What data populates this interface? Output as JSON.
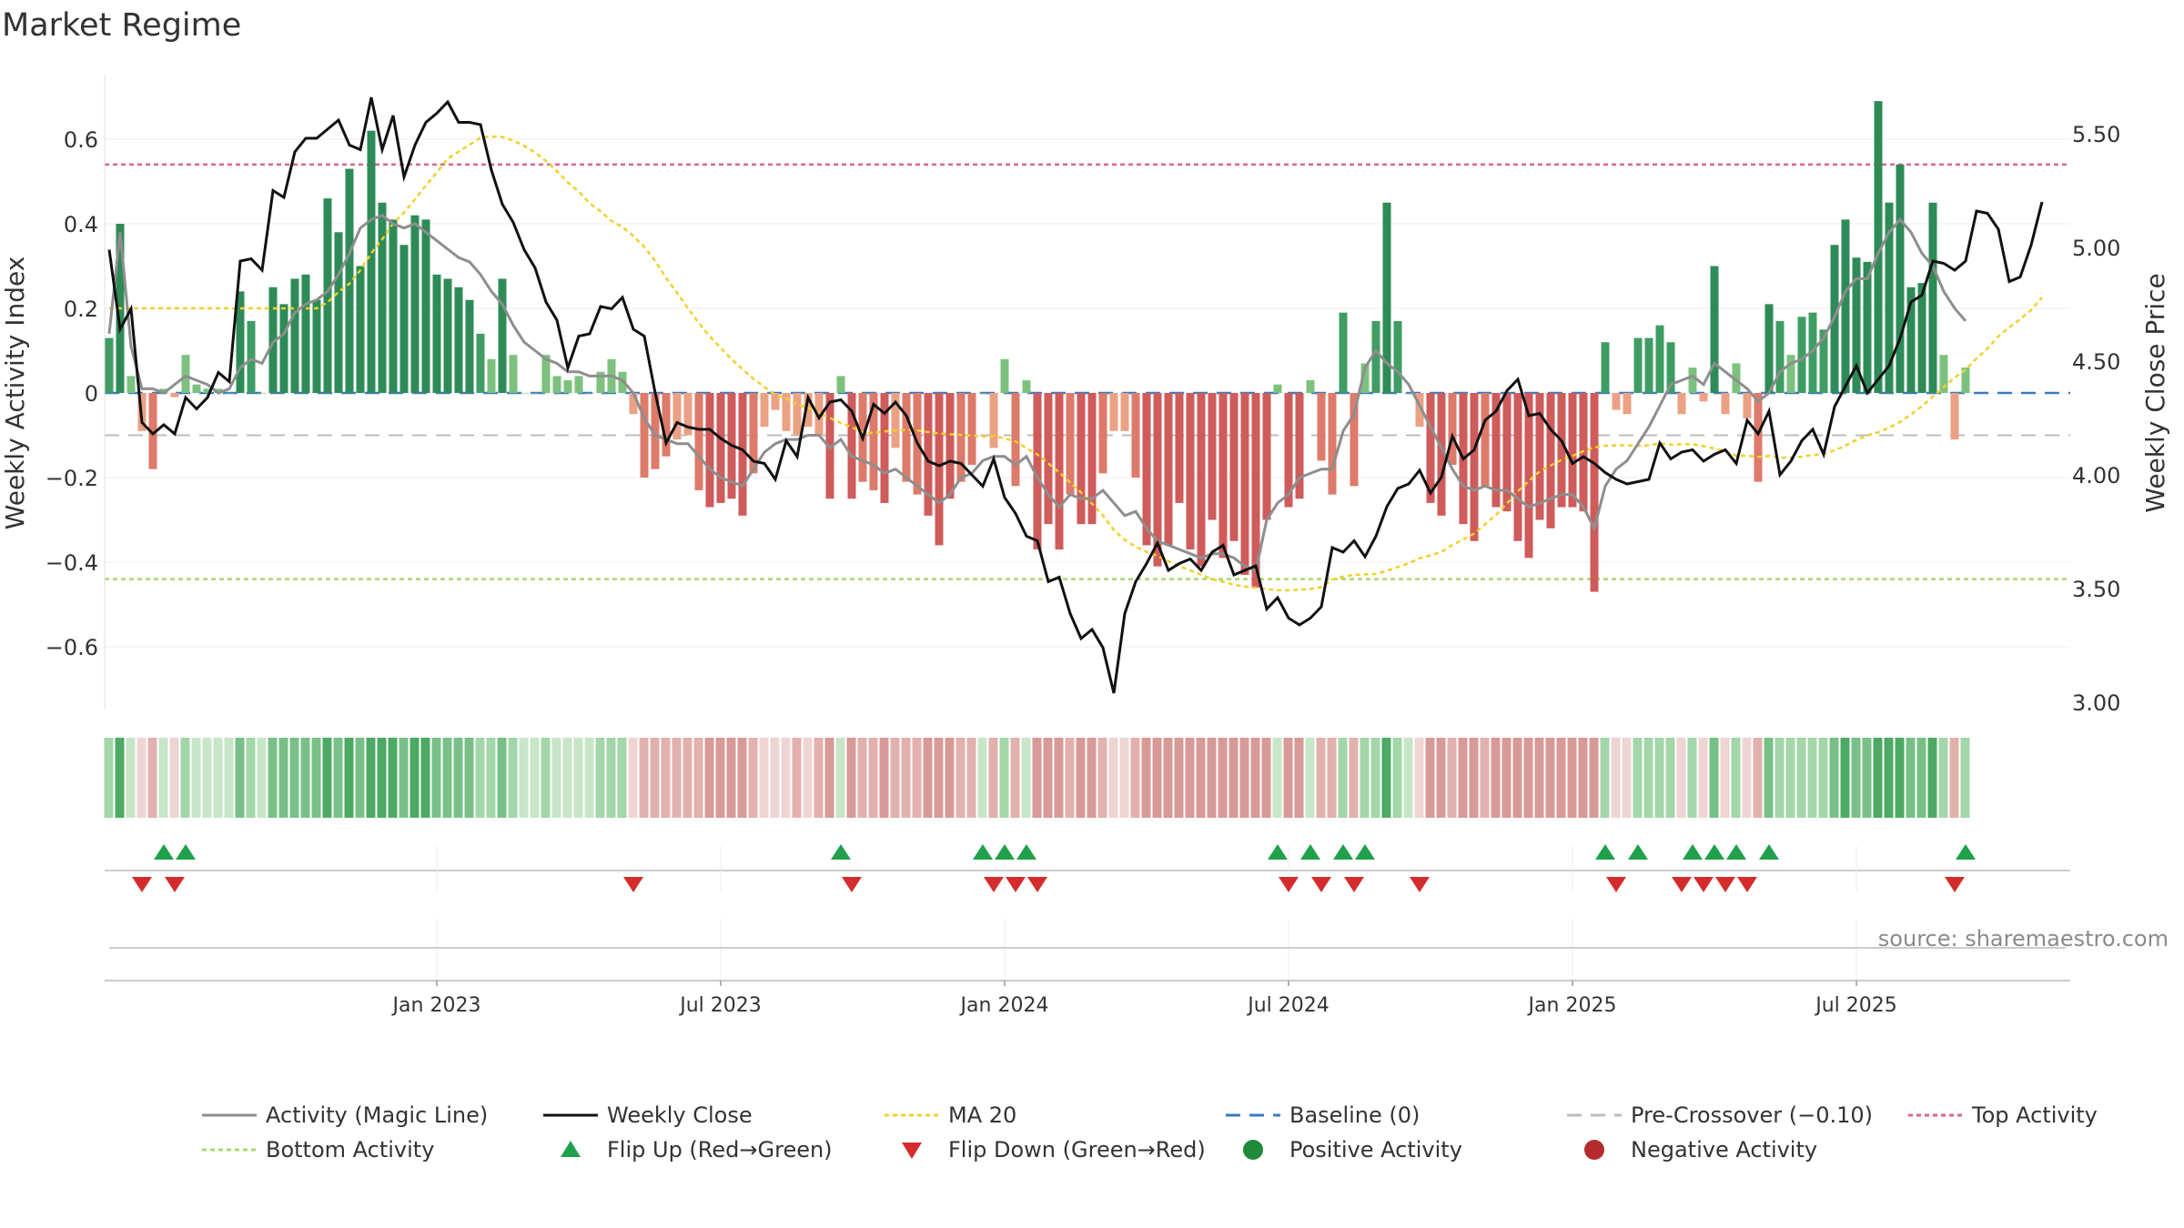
{
  "title": "Market Regime",
  "source_text": "source: sharemaestro.com",
  "chart_data": {
    "type": "bar",
    "subtype": "combo-bar-line-with-regime-strip-and-flip-markers",
    "title": "Market Regime",
    "ylabel_left": "Weekly Activity Index",
    "ylabel_right": "Weekly Close Price",
    "left_ticks": [
      "0.6",
      "0.4",
      "0.2",
      "0",
      "−0.2",
      "−0.4",
      "−0.6"
    ],
    "left_tick_values": [
      0.6,
      0.4,
      0.2,
      0,
      -0.2,
      -0.4,
      -0.6
    ],
    "right_ticks": [
      "5.50",
      "5.00",
      "4.50",
      "4.00",
      "3.50",
      "3.00"
    ],
    "right_tick_values": [
      5.5,
      5.0,
      4.5,
      4.0,
      3.5,
      3.0
    ],
    "ylim_left": [
      -0.75,
      0.75
    ],
    "ylim_right": [
      3.0,
      5.75
    ],
    "x_ticks": [
      "Jan 2023",
      "Jul 2023",
      "Jan 2024",
      "Jul 2024",
      "Jan 2025",
      "Jul 2025"
    ],
    "x_tick_weeks": [
      30,
      56,
      82,
      108,
      134,
      160
    ],
    "grid": true,
    "start": "2022-09-02",
    "week_step_days": 7,
    "reference_lines": {
      "top_activity": 0.54,
      "bottom_activity": -0.44,
      "pre_crossover": -0.1,
      "baseline": 0
    },
    "activity": [
      0.13,
      0.4,
      0.04,
      -0.09,
      -0.18,
      0.01,
      -0.01,
      0.09,
      0.02,
      0.01,
      0.01,
      0.0,
      0.24,
      0.17,
      0.0,
      0.25,
      0.21,
      0.27,
      0.28,
      0.22,
      0.46,
      0.38,
      0.53,
      0.3,
      0.62,
      0.45,
      0.41,
      0.35,
      0.42,
      0.41,
      0.28,
      0.27,
      0.25,
      0.22,
      0.14,
      0.08,
      0.27,
      0.09,
      0.0,
      0.0,
      0.09,
      0.04,
      0.03,
      0.04,
      0.0,
      0.05,
      0.08,
      0.05,
      -0.05,
      -0.2,
      -0.18,
      -0.15,
      -0.11,
      -0.1,
      -0.23,
      -0.27,
      -0.26,
      -0.25,
      -0.29,
      -0.19,
      -0.08,
      -0.04,
      -0.09,
      -0.1,
      -0.08,
      -0.1,
      -0.25,
      0.04,
      -0.25,
      -0.21,
      -0.23,
      -0.26,
      -0.13,
      -0.21,
      -0.24,
      -0.29,
      -0.36,
      -0.25,
      -0.21,
      -0.17,
      0.0,
      -0.13,
      0.08,
      -0.22,
      0.03,
      -0.37,
      -0.31,
      -0.37,
      -0.24,
      -0.31,
      -0.31,
      -0.19,
      -0.09,
      -0.09,
      -0.2,
      -0.36,
      -0.41,
      -0.36,
      -0.26,
      -0.37,
      -0.41,
      -0.3,
      -0.39,
      -0.35,
      -0.43,
      -0.46,
      -0.3,
      0.02,
      -0.27,
      -0.25,
      0.03,
      -0.16,
      -0.24,
      0.19,
      -0.22,
      0.07,
      0.17,
      0.45,
      0.17,
      0.0,
      -0.08,
      -0.26,
      -0.29,
      -0.17,
      -0.31,
      -0.35,
      -0.22,
      -0.27,
      -0.28,
      -0.35,
      -0.39,
      -0.3,
      -0.32,
      -0.27,
      -0.27,
      -0.28,
      -0.47,
      0.12,
      -0.04,
      -0.05,
      0.13,
      0.13,
      0.16,
      0.12,
      -0.05,
      0.06,
      -0.02,
      0.3,
      -0.05,
      0.07,
      -0.06,
      -0.21,
      0.21,
      0.17,
      0.09,
      0.18,
      0.19,
      0.15,
      0.35,
      0.41,
      0.32,
      0.31,
      0.69,
      0.45,
      0.54,
      0.25,
      0.26,
      0.45,
      0.09,
      -0.11,
      0.06
    ],
    "magic_line": [
      0.14,
      0.38,
      0.11,
      0.01,
      0.01,
      0.0,
      0.02,
      0.04,
      0.03,
      0.02,
      0.0,
      0.01,
      0.06,
      0.08,
      0.07,
      0.12,
      0.14,
      0.19,
      0.21,
      0.22,
      0.24,
      0.28,
      0.33,
      0.39,
      0.41,
      0.42,
      0.4,
      0.39,
      0.4,
      0.38,
      0.36,
      0.34,
      0.32,
      0.31,
      0.28,
      0.24,
      0.21,
      0.16,
      0.12,
      0.1,
      0.08,
      0.07,
      0.05,
      0.05,
      0.04,
      0.04,
      0.04,
      0.03,
      0.0,
      -0.06,
      -0.1,
      -0.11,
      -0.12,
      -0.12,
      -0.15,
      -0.18,
      -0.2,
      -0.21,
      -0.22,
      -0.18,
      -0.14,
      -0.12,
      -0.11,
      -0.11,
      -0.1,
      -0.1,
      -0.13,
      -0.11,
      -0.15,
      -0.16,
      -0.17,
      -0.19,
      -0.18,
      -0.2,
      -0.22,
      -0.24,
      -0.26,
      -0.24,
      -0.2,
      -0.19,
      -0.16,
      -0.15,
      -0.15,
      -0.17,
      -0.15,
      -0.2,
      -0.24,
      -0.27,
      -0.24,
      -0.25,
      -0.25,
      -0.23,
      -0.26,
      -0.29,
      -0.28,
      -0.32,
      -0.35,
      -0.36,
      -0.37,
      -0.38,
      -0.39,
      -0.38,
      -0.38,
      -0.39,
      -0.41,
      -0.42,
      -0.3,
      -0.26,
      -0.24,
      -0.2,
      -0.19,
      -0.18,
      -0.18,
      -0.09,
      -0.05,
      0.06,
      0.1,
      0.07,
      0.05,
      0.02,
      -0.03,
      -0.08,
      -0.13,
      -0.18,
      -0.22,
      -0.23,
      -0.22,
      -0.23,
      -0.23,
      -0.25,
      -0.27,
      -0.26,
      -0.25,
      -0.24,
      -0.24,
      -0.27,
      -0.32,
      -0.22,
      -0.18,
      -0.16,
      -0.12,
      -0.08,
      -0.03,
      0.02,
      0.03,
      0.04,
      0.02,
      0.07,
      0.05,
      0.03,
      0.01,
      -0.02,
      0.0,
      0.05,
      0.07,
      0.08,
      0.1,
      0.13,
      0.18,
      0.24,
      0.27,
      0.27,
      0.33,
      0.38,
      0.41,
      0.38,
      0.33,
      0.3,
      0.24,
      0.2,
      0.17
    ],
    "weekly_close": [
      4.99,
      4.64,
      4.73,
      4.23,
      4.18,
      4.22,
      4.18,
      4.34,
      4.29,
      4.34,
      4.45,
      4.41,
      4.94,
      4.95,
      4.9,
      5.25,
      5.22,
      5.42,
      5.48,
      5.48,
      5.52,
      5.56,
      5.45,
      5.43,
      5.66,
      5.43,
      5.58,
      5.31,
      5.45,
      5.55,
      5.59,
      5.64,
      5.55,
      5.55,
      5.54,
      5.34,
      5.19,
      5.11,
      4.99,
      4.91,
      4.76,
      4.68,
      4.47,
      4.61,
      4.62,
      4.74,
      4.73,
      4.78,
      4.64,
      4.61,
      4.36,
      4.14,
      4.23,
      4.21,
      4.2,
      4.2,
      4.16,
      4.13,
      4.11,
      4.06,
      4.05,
      3.98,
      4.15,
      4.08,
      4.34,
      4.25,
      4.32,
      4.33,
      4.28,
      4.16,
      4.31,
      4.27,
      4.32,
      4.26,
      4.14,
      4.06,
      4.04,
      4.06,
      4.05,
      4.0,
      3.95,
      4.07,
      3.9,
      3.83,
      3.73,
      3.71,
      3.53,
      3.55,
      3.39,
      3.28,
      3.32,
      3.24,
      3.04,
      3.39,
      3.53,
      3.61,
      3.7,
      3.58,
      3.61,
      3.63,
      3.58,
      3.66,
      3.69,
      3.56,
      3.58,
      3.6,
      3.41,
      3.46,
      3.37,
      3.34,
      3.37,
      3.42,
      3.68,
      3.66,
      3.71,
      3.64,
      3.73,
      3.86,
      3.94,
      3.96,
      4.02,
      3.92,
      3.99,
      4.17,
      4.07,
      4.11,
      4.24,
      4.28,
      4.37,
      4.42,
      4.26,
      4.27,
      4.2,
      4.15,
      4.05,
      4.08,
      4.05,
      4.01,
      3.98,
      3.96,
      3.97,
      3.98,
      4.14,
      4.07,
      4.1,
      4.11,
      4.06,
      4.09,
      4.11,
      4.05,
      4.24,
      4.18,
      4.28,
      4.0,
      4.06,
      4.15,
      4.2,
      4.09,
      4.3,
      4.39,
      4.48,
      4.36,
      4.42,
      4.48,
      4.6,
      4.76,
      4.79,
      4.94,
      4.93,
      4.9,
      4.94,
      5.16,
      5.15,
      5.08,
      4.85,
      4.87,
      5.01,
      5.2
    ]
  }
}
